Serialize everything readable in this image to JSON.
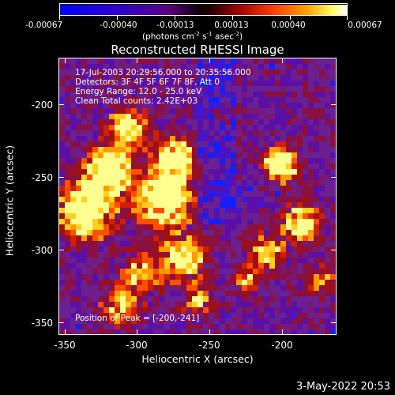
{
  "colorbar": {
    "tick_labels": [
      "-0.00067",
      "-0.00040",
      "-0.00013",
      "0.00013",
      "0.00040",
      "0.00067"
    ],
    "units_prefix": "(photons cm",
    "units_exp1": "-2",
    "units_mid": " s",
    "units_exp2": "-1",
    "units_suffix": " asec",
    "units_exp3": "-2",
    "units_close": ")",
    "colors": [
      "#0000ff",
      "#3a00c8",
      "#6a0090",
      "#000000",
      "#8a0000",
      "#ff2a00",
      "#ff9a00",
      "#ffff40",
      "#ffffff"
    ]
  },
  "title": "Reconstructed RHESSI Image",
  "info": {
    "line1": "17-Jul-2003 20:29:56.000 to 20:35:56.000",
    "line2": "Detectors: 3F 4F 5F 6F 7F 8F, Att 0",
    "line3": "Energy Range: 12.0 - 25.0 keV",
    "line4": "Clean     Total counts: 2.42E+03",
    "peak": "Position of Peak = [-200,-241]"
  },
  "axes": {
    "xlabel": "Heliocentric X (arcsec)",
    "ylabel": "Heliocentric Y (arcsec)",
    "xticks": [
      "-350",
      "-300",
      "-250",
      "-200"
    ],
    "yticks": [
      "-200",
      "-250",
      "-300",
      "-350"
    ]
  },
  "date_stamp": "3-May-2022 20:53"
}
